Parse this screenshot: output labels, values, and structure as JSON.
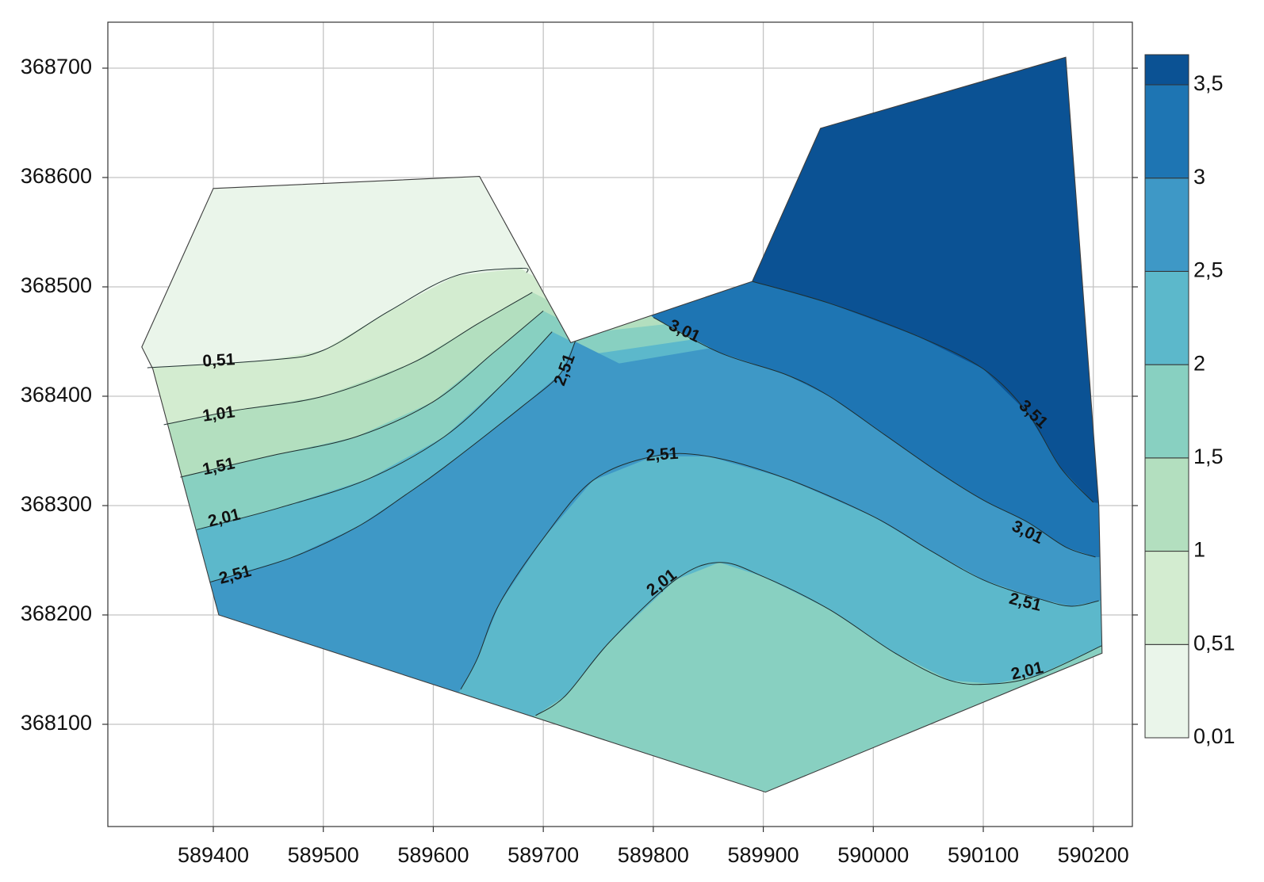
{
  "chart_data": {
    "type": "contour",
    "x_ticks": [
      589400,
      589500,
      589600,
      589700,
      589800,
      589900,
      590000,
      590100,
      590200
    ],
    "y_ticks": [
      368100,
      368200,
      368300,
      368400,
      368500,
      368600,
      368700
    ],
    "xlim": [
      589305,
      590240
    ],
    "ylim": [
      368005,
      368745
    ],
    "grid": true,
    "domain_outline": [
      [
        589335,
        368445
      ],
      [
        589400,
        368590
      ],
      [
        589642,
        368601
      ],
      [
        589725,
        368449
      ],
      [
        589890,
        368505
      ],
      [
        589952,
        368645
      ],
      [
        590175,
        368710
      ],
      [
        590205,
        368300
      ],
      [
        590208,
        368165
      ],
      [
        589902,
        368038
      ],
      [
        589405,
        368200
      ],
      [
        589345,
        368425
      ]
    ],
    "contour_levels": [
      0.51,
      1.01,
      1.51,
      2.01,
      2.51,
      3.01,
      3.51
    ],
    "contour_lines": [
      {
        "level": 0.51,
        "points": [
          [
            589340,
            368426
          ],
          [
            589450,
            368433
          ],
          [
            589500,
            368442
          ],
          [
            589560,
            368478
          ],
          [
            589620,
            368510
          ],
          [
            589680,
            368517
          ],
          [
            589685,
            368513
          ]
        ]
      },
      {
        "level": 1.01,
        "points": [
          [
            589355,
            368374
          ],
          [
            589420,
            368387
          ],
          [
            589500,
            368400
          ],
          [
            589580,
            368430
          ],
          [
            589640,
            368466
          ],
          [
            589690,
            368495
          ]
        ]
      },
      {
        "level": 1.51,
        "points": [
          [
            589370,
            368326
          ],
          [
            589450,
            368345
          ],
          [
            589530,
            368363
          ],
          [
            589600,
            368395
          ],
          [
            589655,
            368440
          ],
          [
            589700,
            368478
          ]
        ]
      },
      {
        "level": 2.01,
        "points": [
          [
            589385,
            368278
          ],
          [
            589460,
            368298
          ],
          [
            589540,
            368324
          ],
          [
            589610,
            368363
          ],
          [
            589665,
            368413
          ],
          [
            589708,
            368459
          ]
        ]
      },
      {
        "level": 2.51,
        "points": [
          [
            589397,
            368230
          ],
          [
            589470,
            368252
          ],
          [
            589530,
            368280
          ],
          [
            589575,
            368310
          ],
          [
            589610,
            368335
          ],
          [
            589680,
            368390
          ],
          [
            589715,
            368420
          ],
          [
            589729,
            368450
          ]
        ]
      },
      {
        "level": 2.51,
        "points": [
          [
            589625,
            368132
          ],
          [
            589640,
            368160
          ],
          [
            589660,
            368210
          ],
          [
            589700,
            368270
          ],
          [
            589745,
            368323
          ],
          [
            589800,
            368345
          ],
          [
            589850,
            368345
          ],
          [
            589920,
            368325
          ],
          [
            590000,
            368290
          ],
          [
            590050,
            368260
          ],
          [
            590100,
            368232
          ],
          [
            590150,
            368215
          ],
          [
            590180,
            368208
          ],
          [
            590205,
            368213
          ]
        ]
      },
      {
        "level": 2.01,
        "points": [
          [
            589693,
            368108
          ],
          [
            589720,
            368126
          ],
          [
            589760,
            368175
          ],
          [
            589820,
            368232
          ],
          [
            589860,
            368248
          ],
          [
            589900,
            368235
          ],
          [
            589960,
            368205
          ],
          [
            590020,
            368165
          ],
          [
            590070,
            368140
          ],
          [
            590110,
            368137
          ],
          [
            590150,
            368145
          ],
          [
            590208,
            368172
          ]
        ]
      },
      {
        "level": 3.01,
        "points": [
          [
            589800,
            368472
          ],
          [
            589860,
            368440
          ],
          [
            589920,
            368420
          ],
          [
            589960,
            368400
          ],
          [
            590010,
            368365
          ],
          [
            590060,
            368330
          ],
          [
            590100,
            368305
          ],
          [
            590140,
            368285
          ],
          [
            590175,
            368262
          ],
          [
            590202,
            368253
          ]
        ]
      },
      {
        "level": 3.51,
        "points": [
          [
            589890,
            368505
          ],
          [
            589960,
            368485
          ],
          [
            590040,
            368455
          ],
          [
            590100,
            368425
          ],
          [
            590140,
            368385
          ],
          [
            590170,
            368335
          ],
          [
            590200,
            368303
          ]
        ]
      }
    ],
    "contour_labels": [
      {
        "text": "0,51",
        "x": 589405,
        "y": 368432,
        "angle": -3
      },
      {
        "text": "1,01",
        "x": 589405,
        "y": 368383,
        "angle": -8
      },
      {
        "text": "1,51",
        "x": 589405,
        "y": 368335,
        "angle": -12
      },
      {
        "text": "2,01",
        "x": 589410,
        "y": 368288,
        "angle": -14
      },
      {
        "text": "2,51",
        "x": 589420,
        "y": 368236,
        "angle": -15
      },
      {
        "text": "2,51",
        "x": 589720,
        "y": 368424,
        "angle": -70
      },
      {
        "text": "3,01",
        "x": 589828,
        "y": 368459,
        "angle": 25
      },
      {
        "text": "2,51",
        "x": 589808,
        "y": 368346,
        "angle": -4
      },
      {
        "text": "2,01",
        "x": 589808,
        "y": 368229,
        "angle": -37
      },
      {
        "text": "3,51",
        "x": 590145,
        "y": 368383,
        "angle": 44
      },
      {
        "text": "3,01",
        "x": 590140,
        "y": 368275,
        "angle": 26
      },
      {
        "text": "2,51",
        "x": 590138,
        "y": 368211,
        "angle": 14
      },
      {
        "text": "2,01",
        "x": 590140,
        "y": 368148,
        "angle": -13
      }
    ],
    "colorbar": {
      "labels": [
        "0,01",
        "0,51",
        "1",
        "1,5",
        "2",
        "2,5",
        "3",
        "3,5"
      ],
      "colors": [
        "#eaf5ea",
        "#d3ecd0",
        "#b3dfbf",
        "#88d0c1",
        "#5cb8cb",
        "#3e98c6",
        "#1e75b3",
        "#0b5294"
      ]
    }
  }
}
